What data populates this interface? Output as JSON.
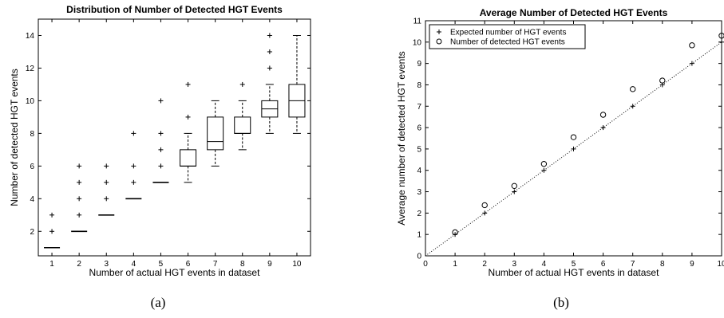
{
  "captions": [
    "(a)",
    "(b)"
  ],
  "chart_data": [
    {
      "type": "box",
      "title": "Distribution of Number of Detected HGT Events",
      "xlabel": "Number of actual HGT events in dataset",
      "ylabel": "Number of detected HGT events",
      "xlim": [
        0.5,
        10.5
      ],
      "ylim": [
        0.5,
        15
      ],
      "x_ticks": [
        1,
        2,
        3,
        4,
        5,
        6,
        7,
        8,
        9,
        10
      ],
      "y_ticks": [
        2,
        4,
        6,
        8,
        10,
        12,
        14
      ],
      "grid": false,
      "boxes": [
        {
          "x": 1,
          "q1": 1,
          "median": 1,
          "q3": 1,
          "whisker_low": 1,
          "whisker_high": 1,
          "outliers": [
            2,
            3
          ]
        },
        {
          "x": 2,
          "q1": 2,
          "median": 2,
          "q3": 2,
          "whisker_low": 2,
          "whisker_high": 2,
          "outliers": [
            3,
            4,
            5,
            6
          ]
        },
        {
          "x": 3,
          "q1": 3,
          "median": 3,
          "q3": 3,
          "whisker_low": 3,
          "whisker_high": 3,
          "outliers": [
            4,
            5,
            6
          ]
        },
        {
          "x": 4,
          "q1": 4,
          "median": 4,
          "q3": 4,
          "whisker_low": 4,
          "whisker_high": 4,
          "outliers": [
            5,
            6,
            8
          ]
        },
        {
          "x": 5,
          "q1": 5,
          "median": 5,
          "q3": 5,
          "whisker_low": 5,
          "whisker_high": 5,
          "outliers": [
            6,
            7,
            8,
            10
          ]
        },
        {
          "x": 6,
          "q1": 6,
          "median": 6,
          "q3": 7,
          "whisker_low": 5,
          "whisker_high": 8,
          "outliers": [
            9,
            11
          ]
        },
        {
          "x": 7,
          "q1": 7,
          "median": 7.5,
          "q3": 9,
          "whisker_low": 6,
          "whisker_high": 10,
          "outliers": []
        },
        {
          "x": 8,
          "q1": 8,
          "median": 8,
          "q3": 9,
          "whisker_low": 7,
          "whisker_high": 10,
          "outliers": [
            11
          ]
        },
        {
          "x": 9,
          "q1": 9,
          "median": 9.5,
          "q3": 10,
          "whisker_low": 8,
          "whisker_high": 11,
          "outliers": [
            12,
            13,
            14
          ]
        },
        {
          "x": 10,
          "q1": 9,
          "median": 10,
          "q3": 11,
          "whisker_low": 8,
          "whisker_high": 14,
          "outliers": []
        }
      ]
    },
    {
      "type": "scatter",
      "title": "Average Number of Detected HGT Events",
      "xlabel": "Number of actual HGT events in dataset",
      "ylabel": "Average number of detected HGT events",
      "xlim": [
        0,
        10
      ],
      "ylim": [
        0,
        11
      ],
      "x_ticks": [
        0,
        1,
        2,
        3,
        4,
        5,
        6,
        7,
        8,
        9,
        10
      ],
      "y_ticks": [
        0,
        1,
        2,
        3,
        4,
        5,
        6,
        7,
        8,
        9,
        10,
        11
      ],
      "grid": false,
      "legend_position": "top-left",
      "series": [
        {
          "name": "Expected number of HGT events",
          "marker": "plus",
          "x": [
            1,
            2,
            3,
            4,
            5,
            6,
            7,
            8,
            9,
            10
          ],
          "y": [
            1,
            2,
            3,
            4,
            5,
            6,
            7,
            8,
            9,
            10
          ]
        },
        {
          "name": "Number of detected HGT events",
          "marker": "circle",
          "x": [
            1,
            2,
            3,
            4,
            5,
            6,
            7,
            8,
            9,
            10
          ],
          "y": [
            1.1,
            2.37,
            3.27,
            4.3,
            5.55,
            6.6,
            7.8,
            8.2,
            9.85,
            10.3
          ]
        }
      ],
      "reference_line": {
        "x": [
          0,
          10
        ],
        "y": [
          0,
          10
        ],
        "style": "dotted"
      }
    }
  ]
}
